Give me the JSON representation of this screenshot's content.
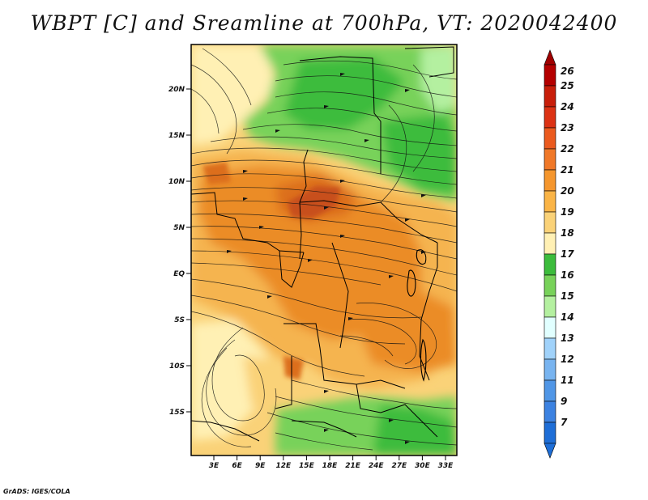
{
  "title": "WBPT [C] and Sreamline at 700hPa, VT: 2020042400",
  "footer": "GrADS: IGES/COLA",
  "map": {
    "lat_ticks": [
      "20N",
      "15N",
      "10N",
      "5N",
      "EQ",
      "5S",
      "10S",
      "15S"
    ],
    "lon_ticks": [
      "3E",
      "6E",
      "9E",
      "12E",
      "15E",
      "18E",
      "21E",
      "24E",
      "27E",
      "30E",
      "33E"
    ],
    "fill_colors": {
      "green_dark": "#3cbc3c",
      "green_mid": "#78d25a",
      "green_light": "#b4f0a0",
      "cream": "#fff0b4",
      "tan": "#fad278",
      "orange_light": "#f5b450",
      "orange": "#eb8c28",
      "orange_dark": "#dc6e1e",
      "red_orange": "#c8501e"
    }
  },
  "colorbar": {
    "levels": [
      {
        "label": "26",
        "color": "#b40000"
      },
      {
        "label": "25",
        "color": "#c81e0a"
      },
      {
        "label": "24",
        "color": "#dc3214"
      },
      {
        "label": "23",
        "color": "#eb5a1e"
      },
      {
        "label": "22",
        "color": "#f07828"
      },
      {
        "label": "21",
        "color": "#f5962d"
      },
      {
        "label": "20",
        "color": "#fab446"
      },
      {
        "label": "19",
        "color": "#fad278"
      },
      {
        "label": "18",
        "color": "#fff0b4"
      },
      {
        "label": "17",
        "color": "#3cbc3c"
      },
      {
        "label": "16",
        "color": "#78d25a"
      },
      {
        "label": "15",
        "color": "#b4f0a0"
      },
      {
        "label": "14",
        "color": "#e1ffff"
      },
      {
        "label": "13",
        "color": "#a0d2fa"
      },
      {
        "label": "12",
        "color": "#78b4f0"
      },
      {
        "label": "11",
        "color": "#5096e6"
      },
      {
        "label": "9",
        "color": "#3c82e1"
      },
      {
        "label": "7",
        "color": "#1e6ed7"
      }
    ],
    "top_cap_color": "#a00000",
    "bottom_cap_color": "#1e6ed7"
  }
}
